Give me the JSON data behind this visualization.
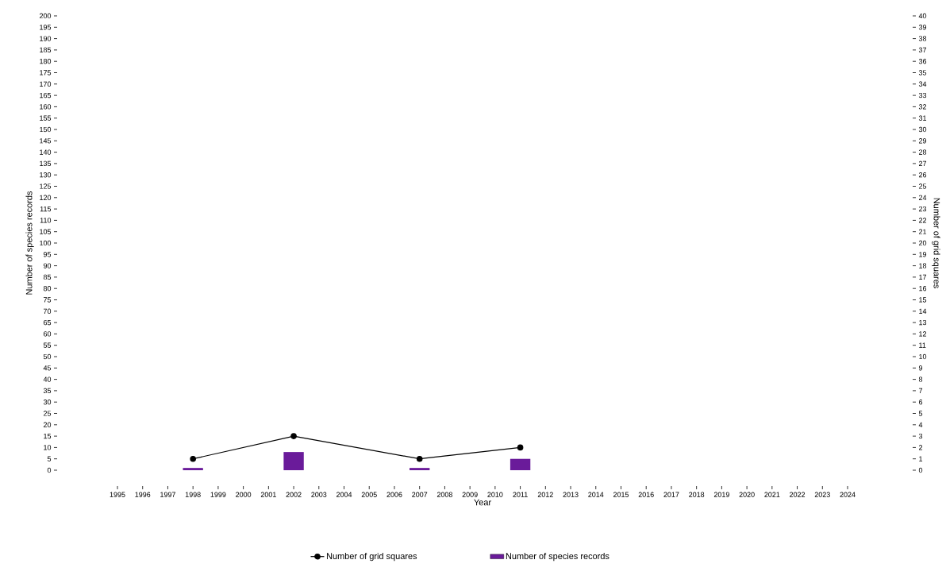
{
  "chart_data": {
    "type": "bar",
    "xlabel": "Year",
    "ylabel": "Number of species records",
    "y2label": "Number of grid squares",
    "xlim": [
      1995,
      2024
    ],
    "xticks": [
      1995,
      1996,
      1997,
      1998,
      1999,
      2000,
      2001,
      2002,
      2003,
      2004,
      2005,
      2006,
      2007,
      2008,
      2009,
      2010,
      2011,
      2012,
      2013,
      2014,
      2015,
      2016,
      2017,
      2018,
      2019,
      2020,
      2021,
      2022,
      2023,
      2024
    ],
    "ylim": [
      0,
      200
    ],
    "yticks": [
      0,
      5,
      10,
      15,
      20,
      25,
      30,
      35,
      40,
      45,
      50,
      55,
      60,
      65,
      70,
      75,
      80,
      85,
      90,
      95,
      100,
      105,
      110,
      115,
      120,
      125,
      130,
      135,
      140,
      145,
      150,
      155,
      160,
      165,
      170,
      175,
      180,
      185,
      190,
      195,
      200
    ],
    "y2lim": [
      0,
      40
    ],
    "y2ticks": [
      0,
      1,
      2,
      3,
      4,
      5,
      6,
      7,
      8,
      9,
      10,
      11,
      12,
      13,
      14,
      15,
      16,
      17,
      18,
      19,
      20,
      21,
      22,
      23,
      24,
      25,
      26,
      27,
      28,
      29,
      30,
      31,
      32,
      33,
      34,
      35,
      36,
      37,
      38,
      39,
      40
    ],
    "legend": "bottom",
    "marker": "circle",
    "series": [
      {
        "name": "Number of grid squares",
        "type": "line",
        "axis": "y2",
        "color": "#000000",
        "x": [
          1998,
          2002,
          2007,
          2011
        ],
        "values": [
          1,
          3,
          1,
          2
        ]
      },
      {
        "name": "Number of species records",
        "color": "#6a1b9a",
        "x": [
          1998,
          2002,
          2007,
          2011
        ],
        "values": [
          1,
          8,
          1,
          5
        ]
      }
    ]
  }
}
